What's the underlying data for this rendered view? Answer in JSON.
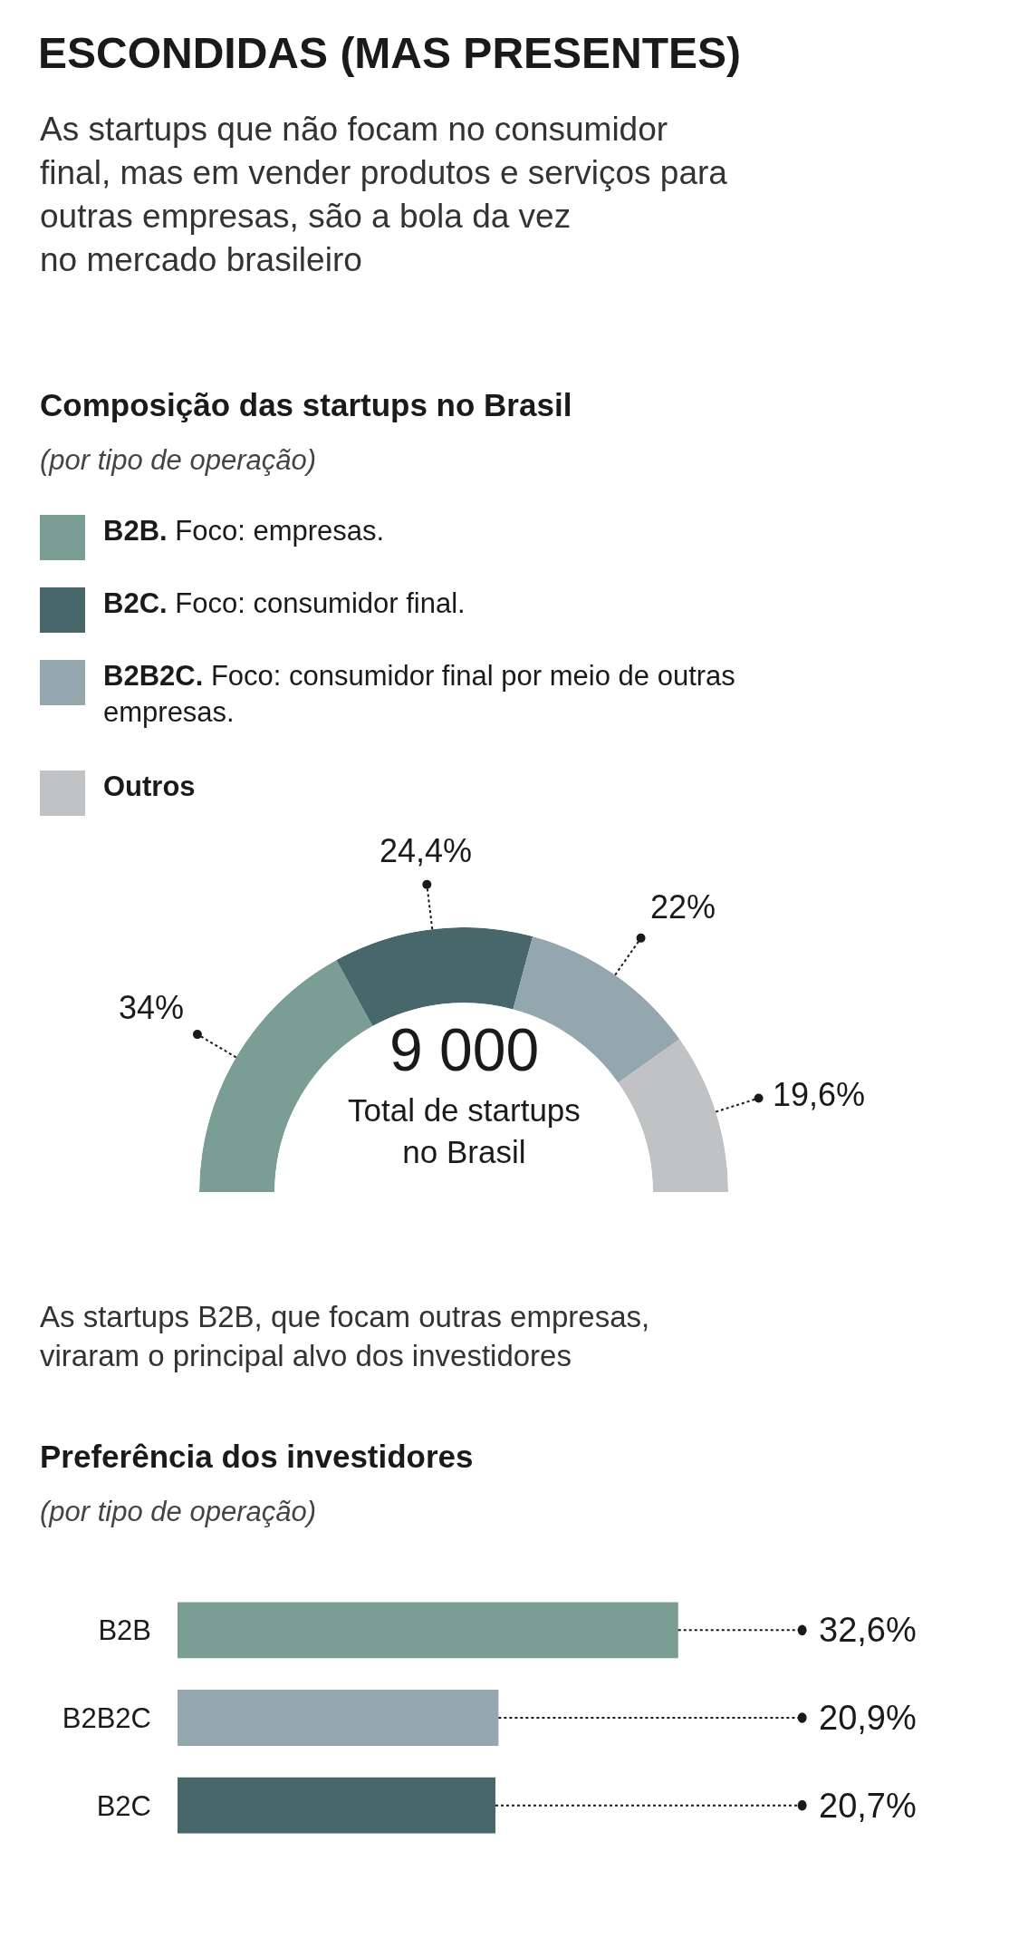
{
  "chart_data": [
    {
      "type": "donut",
      "title": "Composição das startups no Brasil",
      "subtitle": "(por tipo de operação)",
      "categories": [
        "B2B. Foco: empresas.",
        "B2C. Foco: consumidor final.",
        "B2B2C. Foco: consumidor final por meio de outras\nempresas.",
        "Outros"
      ],
      "values": [
        34,
        24.4,
        22,
        19.6
      ],
      "colors": [
        "#7a9e94",
        "#48676a",
        "#94a7af",
        "#c1c2c4"
      ],
      "value_labels": [
        "34%",
        "24,4%",
        "22%",
        "19,6%"
      ],
      "legend": "top",
      "annotations": [
        "ESCONDIDAS (MAS PRESENTES)",
        "As startups que não focam no consumidor\nfinal, mas em vender produtos e serviços para\noutras empresas, são a bola da vez\nno mercado brasileiro",
        "9 000",
        "Total de startups\nno Brasil"
      ]
    },
    {
      "type": "bar",
      "orientation": "horizontal",
      "title": "Preferência dos investidores",
      "subtitle": "(por tipo de operação)",
      "categories": [
        "B2B",
        "B2B2C",
        "B2C"
      ],
      "values": [
        32.6,
        20.9,
        20.7
      ],
      "colors": [
        "#7a9e94",
        "#94a7af",
        "#48676a"
      ],
      "value_labels": [
        "32,6%",
        "20,9%",
        "20,7%"
      ],
      "annotations": [
        "As startups B2B, que focam outras empresas,\nviraram o principal alvo dos investidores"
      ]
    }
  ]
}
